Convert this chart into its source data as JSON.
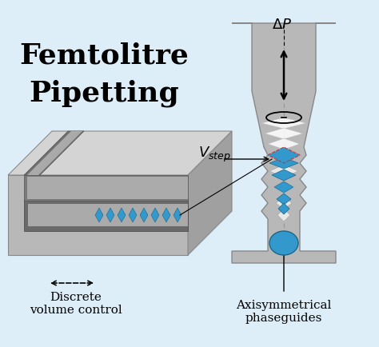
{
  "bg_color": "#ddeef8",
  "title_line1": "Femtolitre",
  "title_line2": "Pipetting",
  "title_fontsize": 26,
  "gray": "#b8b8b8",
  "gray_dark": "#888888",
  "gray_light": "#d4d4d4",
  "gray_mid": "#a0a0a0",
  "gray_inner": "#c0c0c0",
  "blue": "#3399cc",
  "blue_dark": "#1a6688",
  "blue_light": "#55bbee",
  "white_step": "#e8e8e8",
  "label_discrete": "Discrete\nvolume control",
  "label_axis": "Axisymmetrical\nphaseguides",
  "label_vstep": "$V_{step}$",
  "label_dp": "$\\Delta P$",
  "label_fontsize": 11,
  "annot_fontsize": 12
}
